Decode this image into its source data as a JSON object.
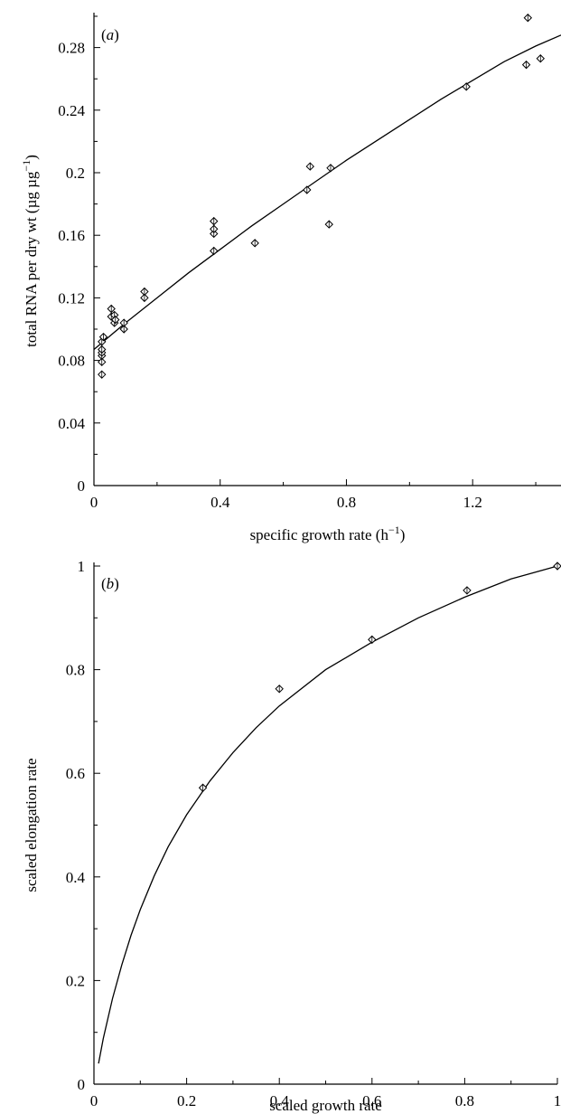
{
  "chart_data": [
    {
      "type": "scatter",
      "panel_label": "(a)",
      "xlabel": "specific growth rate (h",
      "xlabel_sup": "−1",
      "xlabel_tail": ")",
      "ylabel": "total RNA per dry wt (µg µg",
      "ylabel_sup": "−1",
      "ylabel_tail": ")",
      "xlim": [
        0,
        1.48
      ],
      "ylim": [
        0,
        0.3
      ],
      "xticks_major": [
        0,
        0.4,
        0.8,
        1.2
      ],
      "xtick_labels": [
        "0",
        "0.4",
        "0.8",
        "1.2"
      ],
      "xticks_minor": [
        0.2,
        0.6,
        1.0,
        1.4
      ],
      "yticks_major": [
        0,
        0.04,
        0.08,
        0.12,
        0.16,
        0.2,
        0.24,
        0.28
      ],
      "ytick_labels": [
        "0",
        "0.04",
        "0.08",
        "0.12",
        "0.16",
        "0.2",
        "0.24",
        "0.28"
      ],
      "yticks_minor": [
        0.02,
        0.06,
        0.1,
        0.14,
        0.18,
        0.22,
        0.26,
        0.3
      ],
      "grid": false,
      "marker": "diamond",
      "points": [
        [
          0.025,
          0.071
        ],
        [
          0.025,
          0.079
        ],
        [
          0.025,
          0.083
        ],
        [
          0.025,
          0.085
        ],
        [
          0.025,
          0.087
        ],
        [
          0.025,
          0.092
        ],
        [
          0.03,
          0.095
        ],
        [
          0.055,
          0.108
        ],
        [
          0.055,
          0.113
        ],
        [
          0.065,
          0.104
        ],
        [
          0.065,
          0.109
        ],
        [
          0.068,
          0.106
        ],
        [
          0.095,
          0.1
        ],
        [
          0.095,
          0.104
        ],
        [
          0.16,
          0.12
        ],
        [
          0.16,
          0.124
        ],
        [
          0.38,
          0.15
        ],
        [
          0.38,
          0.161
        ],
        [
          0.38,
          0.164
        ],
        [
          0.38,
          0.169
        ],
        [
          0.51,
          0.155
        ],
        [
          0.675,
          0.189
        ],
        [
          0.685,
          0.204
        ],
        [
          0.745,
          0.167
        ],
        [
          0.75,
          0.203
        ],
        [
          1.18,
          0.255
        ],
        [
          1.37,
          0.269
        ],
        [
          1.375,
          0.299
        ],
        [
          1.415,
          0.273
        ]
      ],
      "fit_line": [
        [
          0.0,
          0.087
        ],
        [
          0.1,
          0.104
        ],
        [
          0.2,
          0.12
        ],
        [
          0.3,
          0.136
        ],
        [
          0.4,
          0.151
        ],
        [
          0.5,
          0.166
        ],
        [
          0.6,
          0.18
        ],
        [
          0.7,
          0.194
        ],
        [
          0.8,
          0.208
        ],
        [
          0.9,
          0.221
        ],
        [
          1.0,
          0.234
        ],
        [
          1.1,
          0.247
        ],
        [
          1.2,
          0.259
        ],
        [
          1.3,
          0.271
        ],
        [
          1.4,
          0.281
        ],
        [
          1.48,
          0.288
        ]
      ]
    },
    {
      "type": "scatter",
      "panel_label": "(b)",
      "xlabel": "scaled growth rate",
      "ylabel": "scaled elongation rate",
      "xlim": [
        0,
        1
      ],
      "ylim": [
        0,
        1
      ],
      "xticks_major": [
        0,
        0.2,
        0.4,
        0.6,
        0.8,
        1
      ],
      "xtick_labels": [
        "0",
        "0.2",
        "0.4",
        "0.6",
        "0.8",
        "1"
      ],
      "xticks_minor": [
        0.1,
        0.3,
        0.5,
        0.7,
        0.9
      ],
      "yticks_major": [
        0,
        0.2,
        0.4,
        0.6,
        0.8,
        1
      ],
      "ytick_labels": [
        "0",
        "0.2",
        "0.4",
        "0.6",
        "0.8",
        "1"
      ],
      "yticks_minor": [
        0.1,
        0.3,
        0.5,
        0.7,
        0.9
      ],
      "grid": false,
      "marker": "diamond",
      "points": [
        [
          0.235,
          0.572
        ],
        [
          0.4,
          0.763
        ],
        [
          0.6,
          0.858
        ],
        [
          0.805,
          0.953
        ],
        [
          1.0,
          1.0
        ]
      ],
      "fit_line": [
        [
          0.01,
          0.04
        ],
        [
          0.02,
          0.088
        ],
        [
          0.04,
          0.165
        ],
        [
          0.06,
          0.23
        ],
        [
          0.08,
          0.287
        ],
        [
          0.1,
          0.337
        ],
        [
          0.13,
          0.402
        ],
        [
          0.16,
          0.458
        ],
        [
          0.2,
          0.52
        ],
        [
          0.25,
          0.585
        ],
        [
          0.3,
          0.64
        ],
        [
          0.35,
          0.688
        ],
        [
          0.4,
          0.73
        ],
        [
          0.5,
          0.8
        ],
        [
          0.6,
          0.853
        ],
        [
          0.7,
          0.9
        ],
        [
          0.8,
          0.94
        ],
        [
          0.9,
          0.975
        ],
        [
          1.0,
          1.0
        ]
      ]
    }
  ]
}
